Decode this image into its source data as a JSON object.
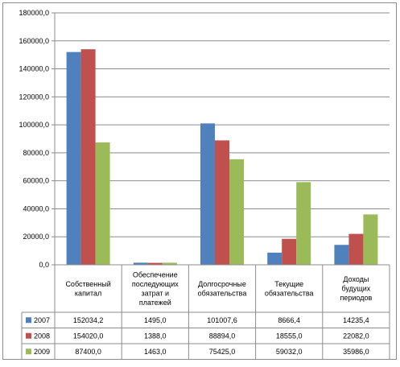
{
  "chart_data": {
    "type": "bar",
    "title": "",
    "xlabel": "",
    "ylabel": "",
    "ylim": [
      0,
      180000
    ],
    "yticks": [
      0,
      20000,
      40000,
      60000,
      80000,
      100000,
      120000,
      140000,
      160000,
      180000
    ],
    "ytick_labels": [
      "0,0",
      "20000,0",
      "40000,0",
      "60000,0",
      "80000,0",
      "100000,0",
      "120000,0",
      "140000,0",
      "160000,0",
      "180000,0"
    ],
    "grid": true,
    "legend_position": "data-table-left",
    "categories": [
      [
        "Собственный",
        "капитал"
      ],
      [
        "Обеспечение",
        "последующих",
        "затрат и",
        "платежей"
      ],
      [
        "Долгосрочные",
        "обязательства"
      ],
      [
        "Текущие",
        "обязательства"
      ],
      [
        "Доходы",
        "будущих",
        "периодов"
      ]
    ],
    "series": [
      {
        "name": "2007",
        "color": "#4f81bd",
        "values": [
          152034.2,
          1495.0,
          101007.6,
          8666.4,
          14235.4
        ],
        "labels": [
          "152034,2",
          "1495,0",
          "101007,6",
          "8666,4",
          "14235,4"
        ]
      },
      {
        "name": "2008",
        "color": "#c0504d",
        "values": [
          154020.0,
          1388.0,
          88894.0,
          18555.0,
          22082.0
        ],
        "labels": [
          "154020,0",
          "1388,0",
          "88894,0",
          "18555,0",
          "22082,0"
        ]
      },
      {
        "name": "2009",
        "color": "#9bbb59",
        "values": [
          87400.0,
          1463.0,
          75425.0,
          59032.0,
          35986.0
        ],
        "labels": [
          "87400,0",
          "1463,0",
          "75425,0",
          "59032,0",
          "35986,0"
        ]
      }
    ]
  }
}
